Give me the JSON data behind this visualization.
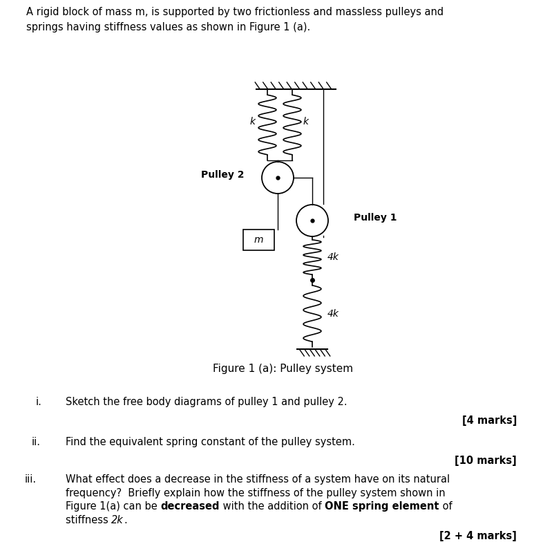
{
  "bg_color": "#ffffff",
  "text_color": "#000000",
  "line_color": "#000000",
  "fig_width": 7.86,
  "fig_height": 7.84,
  "header_line1": "A rigid block of mass m, is supported by two frictionless and massless pulleys and",
  "header_line2": "springs having stiffness values as shown in Figure 1 (a).",
  "figure_caption": "Figure 1 (a): Pulley system",
  "q1_label": "i.",
  "q1_text": "Sketch the free body diagrams of pulley 1 and pulley 2.",
  "q1_marks": "[4 marks]",
  "q2_label": "ii.",
  "q2_text": "Find the equivalent spring constant of the pulley system.",
  "q2_marks": "[10 marks]",
  "q3_label": "iii.",
  "q3_line1": "What effect does a decrease in the stiffness of a system have on its natural",
  "q3_line2": "frequency?  Briefly explain how the stiffness of the pulley system shown in",
  "q3_line3_pre": "Figure 1(a) can be ",
  "q3_line3_bold1": "decreased",
  "q3_line3_mid": " with the addition of ",
  "q3_line3_bold2": "ONE spring element",
  "q3_line3_end": " of",
  "q3_line4_pre": "stiffness ",
  "q3_line4_italic": "2k",
  "q3_line4_end": ".",
  "q3_marks": "[2 + 4 marks]",
  "pulley2_label": "Pulley 2",
  "pulley1_label": "Pulley 1",
  "spring_k_left_label": "k",
  "spring_k_right_label": "k",
  "spring_4k_upper_label": "4k",
  "spring_4k_lower_label": "4k",
  "mass_label": "m"
}
